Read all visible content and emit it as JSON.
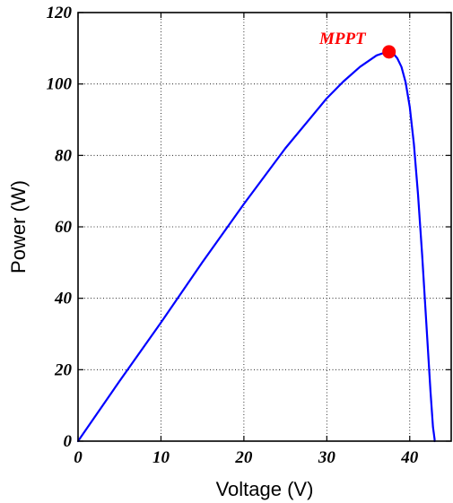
{
  "chart_data": {
    "type": "line",
    "xlabel": "Voltage (V)",
    "ylabel": "Power (W)",
    "xlim": [
      0,
      45
    ],
    "ylim": [
      0,
      120
    ],
    "xticks": [
      0,
      10,
      20,
      30,
      40
    ],
    "yticks": [
      0,
      20,
      40,
      60,
      80,
      100,
      120
    ],
    "xtick_labels": [
      "0",
      "10",
      "20",
      "30",
      "40"
    ],
    "ytick_labels": [
      "0",
      "20",
      "40",
      "60",
      "80",
      "100",
      "120"
    ],
    "grid": true,
    "series": [
      {
        "color": "#0000ff",
        "x": [
          0,
          5,
          10,
          15,
          20,
          25,
          30,
          32,
          34,
          36,
          37,
          37.5,
          38,
          38.5,
          39,
          39.5,
          40,
          40.5,
          41,
          41.5,
          42,
          42.5,
          42.8,
          43,
          43
        ],
        "y": [
          0,
          16.8,
          33.2,
          50.1,
          66.4,
          82.0,
          96.0,
          100.7,
          104.8,
          108.0,
          108.8,
          109.0,
          108.6,
          107.2,
          104.8,
          100.5,
          93.6,
          83.2,
          69.0,
          52.0,
          33.0,
          14.0,
          4.0,
          0.5,
          0
        ]
      }
    ],
    "annotations": [
      {
        "label": "MPPT",
        "x": 37.5,
        "y": 109,
        "color": "#ff0000"
      }
    ]
  }
}
